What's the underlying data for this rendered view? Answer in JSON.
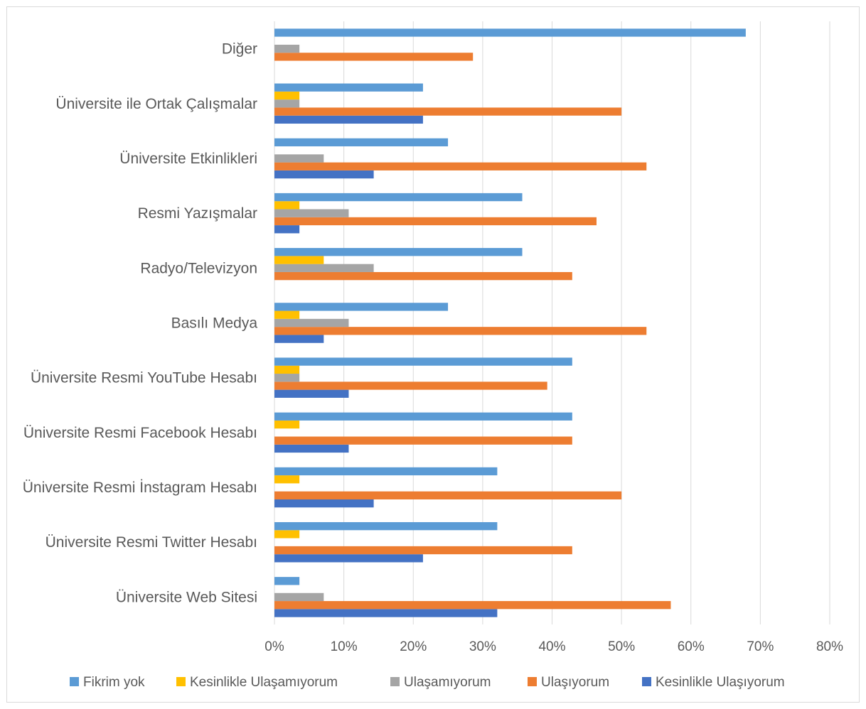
{
  "chart_data": {
    "type": "bar",
    "orientation": "horizontal",
    "categories": [
      "Üniversite Web Sitesi",
      "Üniversite Resmi Twitter Hesabı",
      "Üniversite Resmi İnstagram Hesabı",
      "Üniversite Resmi Facebook Hesabı",
      "Üniversite Resmi YouTube Hesabı",
      "Basılı Medya",
      "Radyo/Televizyon",
      "Resmi Yazışmalar",
      "Üniversite Etkinlikleri",
      "Üniversite ile Ortak Çalışmalar",
      "Diğer"
    ],
    "series": [
      {
        "name": "Kesinlikle Ulaşıyorum",
        "color": "#4472c4",
        "values": [
          32.1,
          21.4,
          14.3,
          10.7,
          10.7,
          7.1,
          0,
          3.6,
          14.3,
          21.4,
          0
        ]
      },
      {
        "name": "Ulaşıyorum",
        "color": "#ed7d31",
        "values": [
          57.1,
          42.9,
          50.0,
          42.9,
          39.3,
          53.6,
          42.9,
          46.4,
          53.6,
          50.0,
          28.6
        ]
      },
      {
        "name": "Ulaşamıyorum",
        "color": "#a5a5a5",
        "values": [
          7.1,
          0,
          0,
          0,
          3.6,
          10.7,
          14.3,
          10.7,
          7.1,
          3.6,
          3.6
        ]
      },
      {
        "name": "Kesinlikle Ulaşamıyorum",
        "color": "#ffc000",
        "values": [
          0,
          3.6,
          3.6,
          3.6,
          3.6,
          3.6,
          7.1,
          3.6,
          0,
          3.6,
          0
        ]
      },
      {
        "name": "Fikrim yok",
        "color": "#5b9bd5",
        "values": [
          3.6,
          32.1,
          32.1,
          42.9,
          42.9,
          25.0,
          35.7,
          35.7,
          25.0,
          21.4,
          67.9
        ]
      }
    ],
    "legend_order": [
      "Fikrim yok",
      "Kesinlikle Ulaşamıyorum",
      "Ulaşamıyorum",
      "Ulaşıyorum",
      "Kesinlikle Ulaşıyorum"
    ],
    "xlim": [
      0,
      80
    ],
    "xticks": [
      "0%",
      "10%",
      "20%",
      "30%",
      "40%",
      "50%",
      "60%",
      "70%",
      "80%"
    ],
    "grid": true,
    "legend_position": "bottom"
  }
}
